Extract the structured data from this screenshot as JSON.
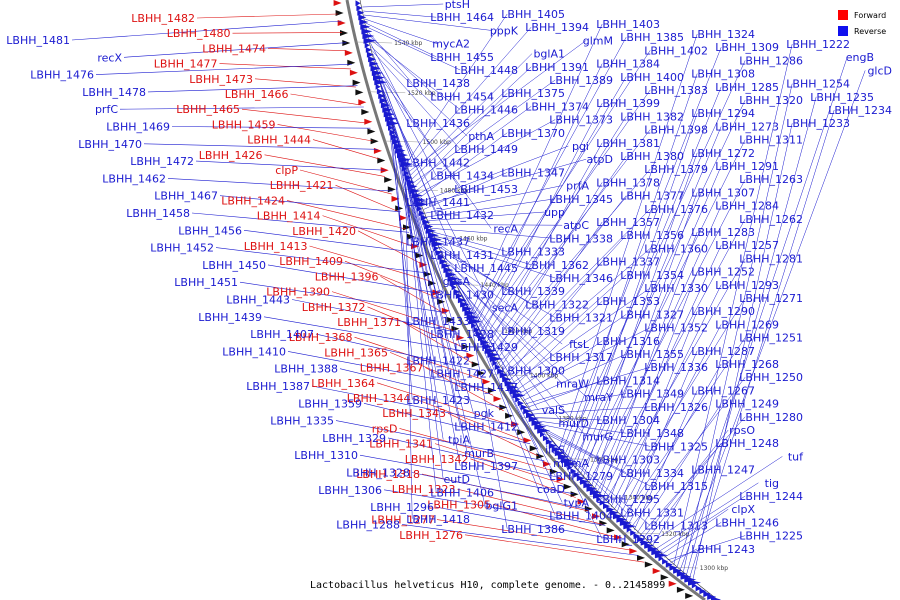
{
  "caption": "Lactobacillus helveticus H10, complete genome. - 0..2145899",
  "legend": [
    {
      "label": "Forward",
      "color": "#ff0000"
    },
    {
      "label": "Reverse",
      "color": "#1010ee"
    }
  ],
  "colors": {
    "forward": "#dd1111",
    "reverse": "#1a1ad0",
    "backbone": "#888888"
  },
  "ticks": [
    "1540 kbp",
    "1520 kbp",
    "1500 kbp",
    "1480 kbp",
    "1460 kbp",
    "1440 kbp",
    "1420 kbp",
    "1400 kbp",
    "1380 kbp",
    "1360 kbp",
    "1340 kbp",
    "1320 kbp",
    "1300 kbp"
  ],
  "forward_labels": [
    "LBHH_1482",
    "LBHH_1480",
    "LBHH_1474",
    "LBHH_1477",
    "LBHH_1473",
    "LBHH_1466",
    "LBHH_1465",
    "LBHH_1459",
    "LBHH_1444",
    "LBHH_1426",
    "clpP",
    "LBHH_1421",
    "LBHH_1424",
    "LBHH_1414",
    "LBHH_1420",
    "LBHH_1413",
    "LBHH_1409",
    "LBHH_1396",
    "LBHH_1390",
    "LBHH_1372",
    "LBHH_1371",
    "LBHH_1368",
    "LBHH_1365",
    "LBHH_1367",
    "LBHH_1364",
    "LBHH_1344",
    "LBHH_1343",
    "rpsD",
    "LBHH_1341",
    "LBHH_1342",
    "LBHH_1318",
    "LBHH_1323",
    "LBHH_1305",
    "LBHH_1277",
    "LBHH_1276"
  ],
  "reverse_left_labels": [
    "LBHH_1481",
    "recX",
    "LBHH_1476",
    "LBHH_1478",
    "prfC",
    "LBHH_1469",
    "LBHH_1470",
    "LBHH_1472",
    "LBHH_1462",
    "LBHH_1467",
    "LBHH_1458",
    "LBHH_1456",
    "LBHH_1452",
    "LBHH_1450",
    "LBHH_1451",
    "LBHH_1443",
    "LBHH_1439",
    "LBHH_1407",
    "LBHH_1410",
    "LBHH_1388",
    "LBHH_1387",
    "LBHH_1359",
    "LBHH_1335",
    "LBHH_1329",
    "LBHH_1310",
    "LBHH_1328",
    "LBHH_1306",
    "LBHH_1296",
    "LBHH_1288"
  ],
  "reverse_right_labels": [
    "ptsH",
    "LBHH_1464",
    "pppK",
    "mycA2",
    "LBHH_1455",
    "LBHH_1448",
    "LBHH_1438",
    "LBHH_1454",
    "LBHH_1446",
    "LBHH_1436",
    "pthA",
    "LBHH_1449",
    "LBHH_1442",
    "LBHH_1434",
    "LBHH_1453",
    "LBHH_1441",
    "LBHH_1432",
    "recA",
    "LBHH_1437",
    "LBHH_1431",
    "LBHH_1445",
    "gpsA",
    "LBHH_1430",
    "secA",
    "LBHH_1433",
    "LBHH_1428",
    "LBHH_1429",
    "LBHH_1422",
    "LBHH_1427",
    "LBHH_1417",
    "LBHH_1423",
    "pgk",
    "LBHH_1412",
    "tpiA",
    "murB",
    "LBHH_1397",
    "eutD",
    "LBHH_1406",
    "bglG1",
    "LBHH_1418",
    "LBHH_1405",
    "LBHH_1394",
    "glmM",
    "bglA1",
    "LBHH_1391",
    "LBHH_1389",
    "LBHH_1375",
    "LBHH_1374",
    "LBHH_1373",
    "LBHH_1370",
    "pgi",
    "atpD",
    "LBHH_1347",
    "prfA",
    "LBHH_1345",
    "upp",
    "atpC",
    "LBHH_1338",
    "LBHH_1333",
    "LBHH_1362",
    "LBHH_1346",
    "LBHH_1339",
    "LBHH_1322",
    "LBHH_1321",
    "LBHH_1319",
    "ftsL",
    "LBHH_1317",
    "LBHH_1300",
    "mraW",
    "mraY",
    "valS",
    "murD",
    "murG",
    "ileS",
    "mnmA",
    "LBHH_1279",
    "coaD",
    "typA",
    "LBHH_1404",
    "LBHH_1386",
    "LBHH_1403",
    "LBHH_1385",
    "LBHH_1402",
    "LBHH_1384",
    "LBHH_1400",
    "LBHH_1383",
    "LBHH_1399",
    "LBHH_1382",
    "LBHH_1398",
    "LBHH_1381",
    "LBHH_1380",
    "LBHH_1379",
    "LBHH_1378",
    "LBHH_1377",
    "LBHH_1376",
    "LBHH_1357",
    "LBHH_1356",
    "LBHH_1360",
    "LBHH_1337",
    "LBHH_1354",
    "LBHH_1330",
    "LBHH_1353",
    "LBHH_1327",
    "LBHH_1352",
    "LBHH_1316",
    "LBHH_1355",
    "LBHH_1336",
    "LBHH_1314",
    "LBHH_1349",
    "LBHH_1326",
    "LBHH_1304",
    "LBHH_1348",
    "LBHH_1325",
    "LBHH_1303",
    "LBHH_1334",
    "LBHH_1315",
    "LBHH_1295",
    "LBHH_1331",
    "LBHH_1313",
    "LBHH_1292",
    "LBHH_1324",
    "LBHH_1309",
    "LBHH_1286",
    "LBHH_1308",
    "LBHH_1285",
    "LBHH_1320",
    "LBHH_1294",
    "LBHH_1273",
    "LBHH_1311",
    "LBHH_1272",
    "LBHH_1291",
    "LBHH_1263",
    "LBHH_1307",
    "LBHH_1284",
    "LBHH_1262",
    "LBHH_1283",
    "LBHH_1257",
    "LBHH_1281",
    "LBHH_1252",
    "LBHH_1293",
    "LBHH_1271",
    "LBHH_1290",
    "LBHH_1269",
    "LBHH_1251",
    "LBHH_1287",
    "LBHH_1268",
    "LBHH_1250",
    "LBHH_1267",
    "LBHH_1249",
    "LBHH_1280",
    "rpsO",
    "LBHH_1248",
    "tuf",
    "LBHH_1247",
    "tig",
    "LBHH_1244",
    "clpX",
    "LBHH_1246",
    "LBHH_1225",
    "LBHH_1243",
    "LBHH_1222",
    "engB",
    "glcD",
    "LBHH_1254",
    "LBHH_1235",
    "LBHH_1234",
    "LBHH_1233"
  ]
}
